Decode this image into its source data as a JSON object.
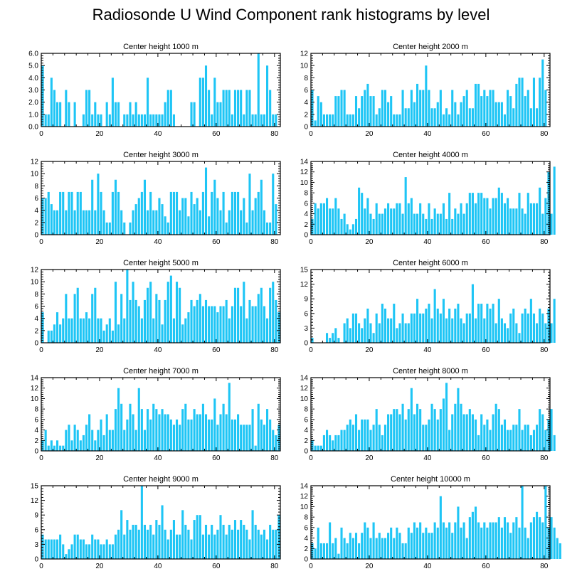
{
  "title": "Radiosonde U Wind Component rank histograms by level",
  "bar_color": "#1ec5f5",
  "chart_data": [
    {
      "type": "bar",
      "title": "Center height 1000 m",
      "ylim": [
        0,
        6
      ],
      "yticks": [
        "0.0",
        "1.0",
        "2.0",
        "3.0",
        "4.0",
        "5.0",
        "6.0"
      ],
      "xlim": [
        0,
        82
      ],
      "xticks": [
        "0",
        "20",
        "40",
        "60",
        "80"
      ],
      "values": [
        5,
        1,
        1,
        4,
        3,
        2,
        2,
        0,
        3,
        2,
        0,
        2,
        0,
        0,
        1,
        3,
        3,
        1,
        2,
        1,
        1,
        0,
        2,
        1,
        4,
        2,
        2,
        0,
        1,
        1,
        2,
        1,
        2,
        1,
        1,
        1,
        4,
        1,
        1,
        1,
        1,
        1,
        2,
        3,
        3,
        1,
        0,
        0,
        0,
        0,
        0,
        2,
        2,
        0,
        4,
        4,
        5,
        3,
        1,
        4,
        2,
        2,
        3,
        3,
        3,
        1,
        3,
        3,
        3,
        1,
        3,
        3,
        1,
        1,
        6,
        1,
        1,
        5,
        3,
        1,
        1,
        0
      ]
    },
    {
      "type": "bar",
      "title": "Center height 2000 m",
      "ylim": [
        0,
        12
      ],
      "yticks": [
        "0",
        "2",
        "4",
        "6",
        "8",
        "10",
        "12"
      ],
      "xlim": [
        0,
        82
      ],
      "xticks": [
        "0",
        "20",
        "40",
        "60",
        "80"
      ],
      "values": [
        6,
        1,
        5,
        4,
        2,
        2,
        2,
        2,
        5,
        5,
        6,
        6,
        2,
        2,
        2,
        5,
        3,
        5,
        6,
        7,
        5,
        5,
        2,
        3,
        6,
        6,
        4,
        5,
        2,
        2,
        2,
        6,
        3,
        3,
        6,
        4,
        7,
        6,
        6,
        10,
        6,
        3,
        3,
        4,
        6,
        2,
        3,
        2,
        6,
        4,
        2,
        4,
        5,
        6,
        3,
        3,
        7,
        7,
        5,
        6,
        5,
        6,
        6,
        4,
        4,
        4,
        2,
        6,
        5,
        3,
        7,
        8,
        8,
        5,
        6,
        3,
        8,
        3,
        8,
        11,
        6,
        0
      ]
    },
    {
      "type": "bar",
      "title": "Center height 3000 m",
      "ylim": [
        0,
        12
      ],
      "yticks": [
        "0",
        "2",
        "4",
        "6",
        "8",
        "10",
        "12"
      ],
      "xlim": [
        0,
        82
      ],
      "xticks": [
        "0",
        "20",
        "40",
        "60",
        "80"
      ],
      "values": [
        6,
        6,
        7,
        5,
        4,
        4,
        7,
        7,
        4,
        7,
        7,
        4,
        7,
        7,
        4,
        4,
        4,
        9,
        4,
        10,
        7,
        4,
        2,
        2,
        7,
        9,
        7,
        4,
        2,
        0,
        2,
        4,
        5,
        6,
        7,
        9,
        4,
        7,
        4,
        4,
        6,
        5,
        3,
        2,
        7,
        7,
        7,
        4,
        6,
        6,
        3,
        7,
        5,
        6,
        4,
        7,
        11,
        3,
        7,
        9,
        6,
        4,
        7,
        2,
        4,
        7,
        7,
        7,
        4,
        6,
        2,
        10,
        4,
        6,
        7,
        9,
        4,
        2,
        2,
        10,
        5,
        0
      ]
    },
    {
      "type": "bar",
      "title": "Center height 4000 m",
      "ylim": [
        0,
        14
      ],
      "yticks": [
        "0",
        "2",
        "4",
        "6",
        "8",
        "10",
        "12",
        "14"
      ],
      "xlim": [
        0,
        82
      ],
      "xticks": [
        "0",
        "20",
        "40",
        "60",
        "80"
      ],
      "values": [
        3,
        6,
        5,
        6,
        6,
        7,
        5,
        5,
        7,
        5,
        3,
        4,
        2,
        1,
        2,
        3,
        9,
        8,
        5,
        7,
        4,
        3,
        6,
        4,
        4,
        5,
        6,
        5,
        5,
        6,
        6,
        4,
        11,
        6,
        7,
        4,
        4,
        6,
        4,
        3,
        6,
        3,
        5,
        4,
        4,
        6,
        3,
        8,
        3,
        5,
        4,
        6,
        4,
        6,
        8,
        8,
        6,
        8,
        8,
        7,
        7,
        5,
        7,
        7,
        9,
        8,
        6,
        7,
        5,
        5,
        5,
        8,
        5,
        4,
        8,
        6,
        6,
        6,
        9,
        4,
        7,
        12,
        4,
        13,
        0,
        0
      ]
    },
    {
      "type": "bar",
      "title": "Center height 5000 m",
      "ylim": [
        0,
        12
      ],
      "yticks": [
        "0",
        "2",
        "4",
        "6",
        "8",
        "10",
        "12"
      ],
      "xlim": [
        0,
        82
      ],
      "xticks": [
        "0",
        "20",
        "40",
        "60",
        "80"
      ],
      "values": [
        5,
        0,
        2,
        2,
        3,
        5,
        3,
        4,
        8,
        4,
        4,
        8,
        9,
        4,
        4,
        5,
        4,
        8,
        9,
        4,
        4,
        2,
        3,
        4,
        2,
        10,
        3,
        8,
        4,
        12,
        7,
        10,
        7,
        6,
        4,
        7,
        9,
        10,
        4,
        8,
        7,
        3,
        7,
        10,
        11,
        4,
        10,
        9,
        3,
        4,
        5,
        7,
        6,
        7,
        8,
        6,
        7,
        6,
        6,
        6,
        5,
        6,
        6,
        7,
        4,
        6,
        9,
        9,
        6,
        10,
        4,
        7,
        6,
        6,
        8,
        9,
        6,
        4,
        9,
        10,
        7,
        5,
        0
      ]
    },
    {
      "type": "bar",
      "title": "Center height 6000 m",
      "ylim": [
        0,
        15
      ],
      "yticks": [
        "0",
        "3",
        "6",
        "9",
        "12",
        "15"
      ],
      "xlim": [
        0,
        82
      ],
      "xticks": [
        "0",
        "20",
        "40",
        "60",
        "80"
      ],
      "values": [
        1,
        0,
        0,
        0,
        0,
        2,
        1,
        2,
        3,
        1,
        0,
        4,
        5,
        3,
        6,
        6,
        4,
        3,
        5,
        7,
        4,
        2,
        6,
        4,
        8,
        7,
        5,
        5,
        8,
        3,
        4,
        6,
        4,
        4,
        6,
        6,
        9,
        6,
        6,
        7,
        8,
        5,
        11,
        7,
        6,
        9,
        5,
        7,
        5,
        7,
        8,
        5,
        4,
        6,
        6,
        12,
        5,
        8,
        8,
        5,
        8,
        7,
        8,
        4,
        9,
        5,
        4,
        3,
        6,
        7,
        4,
        2,
        6,
        7,
        6,
        9,
        6,
        4,
        7,
        6,
        4,
        7,
        4,
        9,
        0
      ]
    },
    {
      "type": "bar",
      "title": "Center height 7000 m",
      "ylim": [
        0,
        14
      ],
      "yticks": [
        "0",
        "2",
        "4",
        "6",
        "8",
        "10",
        "12",
        "14"
      ],
      "xlim": [
        0,
        82
      ],
      "xticks": [
        "0",
        "20",
        "40",
        "60",
        "80"
      ],
      "values": [
        2,
        4,
        1,
        2,
        1,
        2,
        1,
        1,
        4,
        5,
        2,
        5,
        4,
        2,
        3,
        5,
        7,
        4,
        2,
        4,
        6,
        3,
        7,
        4,
        4,
        8,
        12,
        9,
        4,
        6,
        9,
        7,
        4,
        12,
        8,
        4,
        8,
        6,
        9,
        8,
        7,
        8,
        7,
        7,
        6,
        5,
        6,
        5,
        8,
        9,
        6,
        6,
        8,
        7,
        7,
        9,
        7,
        6,
        6,
        10,
        5,
        7,
        9,
        7,
        13,
        6,
        6,
        7,
        5,
        5,
        5,
        5,
        8,
        1,
        9,
        6,
        5,
        8,
        6,
        4,
        3,
        5
      ]
    },
    {
      "type": "bar",
      "title": "Center height 8000 m",
      "ylim": [
        0,
        14
      ],
      "yticks": [
        "0",
        "2",
        "4",
        "6",
        "8",
        "10",
        "12",
        "14"
      ],
      "xlim": [
        0,
        82
      ],
      "xticks": [
        "0",
        "20",
        "40",
        "60",
        "80"
      ],
      "values": [
        2,
        1,
        1,
        1,
        3,
        4,
        3,
        2,
        3,
        3,
        4,
        4,
        5,
        6,
        5,
        7,
        4,
        6,
        6,
        6,
        4,
        5,
        8,
        5,
        3,
        5,
        7,
        7,
        8,
        8,
        7,
        9,
        6,
        8,
        12,
        7,
        9,
        8,
        5,
        5,
        6,
        9,
        8,
        6,
        8,
        10,
        13,
        4,
        7,
        9,
        12,
        9,
        7,
        7,
        8,
        7,
        6,
        3,
        7,
        5,
        6,
        4,
        7,
        9,
        8,
        5,
        6,
        4,
        4,
        5,
        5,
        8,
        4,
        5,
        5,
        3,
        4,
        5,
        8,
        7,
        4,
        6,
        8,
        3
      ]
    },
    {
      "type": "bar",
      "title": "Center height 9000 m",
      "ylim": [
        0,
        15
      ],
      "yticks": [
        "0",
        "3",
        "6",
        "9",
        "12",
        "15"
      ],
      "xlim": [
        0,
        82
      ],
      "xticks": [
        "0",
        "20",
        "40",
        "60",
        "80"
      ],
      "values": [
        5,
        4,
        4,
        4,
        4,
        4,
        5,
        3,
        1,
        2,
        3,
        5,
        5,
        4,
        4,
        3,
        3,
        5,
        4,
        4,
        3,
        3,
        4,
        3,
        3,
        5,
        6,
        10,
        5,
        8,
        6,
        7,
        7,
        6,
        15,
        7,
        6,
        7,
        5,
        8,
        7,
        11,
        6,
        4,
        6,
        8,
        5,
        5,
        10,
        7,
        6,
        4,
        8,
        9,
        9,
        5,
        7,
        5,
        7,
        5,
        6,
        9,
        7,
        5,
        7,
        6,
        8,
        6,
        8,
        7,
        6,
        4,
        10,
        7,
        6,
        5,
        6,
        4,
        7,
        6,
        6,
        9
      ]
    },
    {
      "type": "bar",
      "title": "Center height 10000 m",
      "ylim": [
        0,
        14
      ],
      "yticks": [
        "0",
        "2",
        "4",
        "6",
        "8",
        "10",
        "12",
        "14"
      ],
      "xlim": [
        0,
        82
      ],
      "xticks": [
        "0",
        "20",
        "40",
        "60",
        "80"
      ],
      "values": [
        3,
        2,
        6,
        3,
        3,
        3,
        7,
        3,
        4,
        1,
        6,
        4,
        3,
        5,
        4,
        5,
        3,
        5,
        7,
        6,
        4,
        7,
        4,
        5,
        4,
        4,
        5,
        6,
        4,
        6,
        5,
        3,
        3,
        6,
        5,
        7,
        6,
        7,
        5,
        6,
        5,
        5,
        7,
        6,
        12,
        7,
        6,
        7,
        5,
        7,
        10,
        6,
        7,
        4,
        8,
        9,
        10,
        7,
        6,
        7,
        6,
        7,
        7,
        7,
        8,
        6,
        8,
        7,
        5,
        7,
        8,
        6,
        14,
        6,
        4,
        7,
        8,
        9,
        8,
        7,
        14,
        6,
        8,
        6,
        4,
        3
      ]
    }
  ]
}
